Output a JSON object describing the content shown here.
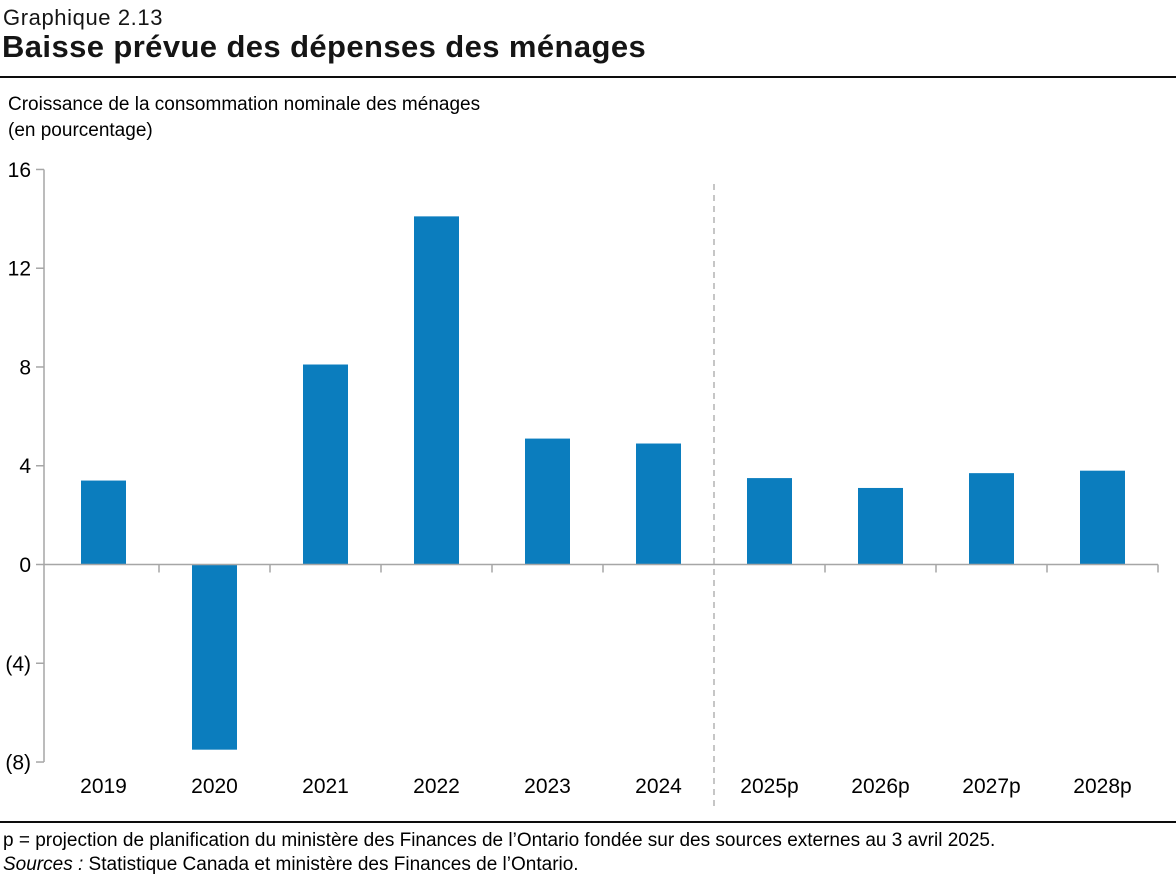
{
  "header": {
    "chart_number": "Graphique 2.13",
    "title": "Baisse prévue des dépenses des ménages"
  },
  "subtitle": {
    "line1": "Croissance de la consommation nominale des ménages",
    "line2": "(en pourcentage)"
  },
  "chart_data": {
    "type": "bar",
    "title": "Croissance de la consommation nominale des ménages (en pourcentage)",
    "categories": [
      "2019",
      "2020",
      "2021",
      "2022",
      "2023",
      "2024",
      "2025p",
      "2026p",
      "2027p",
      "2028p"
    ],
    "values": [
      3.4,
      -7.5,
      8.1,
      14.1,
      5.1,
      4.9,
      3.5,
      3.1,
      3.7,
      3.8
    ],
    "xlabel": "",
    "ylabel": "en pourcentage",
    "ylim": [
      -8,
      16
    ],
    "yticks": [
      16,
      12,
      8,
      4,
      0,
      -4,
      -8
    ],
    "negative_label_style": "parentheses",
    "grid": false,
    "legend": "none",
    "projection_separator_after_index": 5,
    "separator_style": "dashed",
    "colors": {
      "bar": "#0b7dbe",
      "axis": "#a6a6a6",
      "separator": "#b3b3b3",
      "text": "#000000"
    }
  },
  "footer": {
    "note": "p = projection de planification du ministère des Finances de l’Ontario fondée sur des sources externes au 3 avril 2025.",
    "sources_label": "Sources :",
    "sources_text": "Statistique Canada et ministère des Finances de l’Ontario."
  }
}
